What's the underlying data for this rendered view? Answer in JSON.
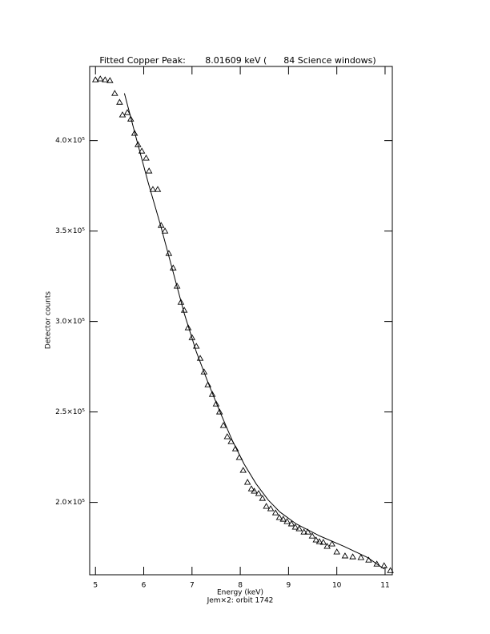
{
  "chart_data": {
    "type": "scatter",
    "title": "Fitted Copper Peak:       8.01609 keV (      84 Science windows)",
    "x_label": "Energy (keV)",
    "subtitle": "Jem×2: orbit 1742",
    "y_label": "Detector counts",
    "xlim": [
      4.88,
      11.15
    ],
    "xticks": [
      5,
      6,
      7,
      8,
      9,
      10,
      11
    ],
    "ylim": [
      160000,
      441000
    ],
    "yticks": [
      {
        "value": 200000,
        "label": "2.0×10⁵"
      },
      {
        "value": 250000,
        "label": "2.5×10⁵"
      },
      {
        "value": 300000,
        "label": "3.0×10⁵"
      },
      {
        "value": 350000,
        "label": "3.5×10⁵"
      },
      {
        "value": 400000,
        "label": "4.0×10⁵"
      }
    ],
    "color": "#000000",
    "series": [
      {
        "marker": "triangle",
        "x": [
          5.0,
          5.1,
          5.2,
          5.3,
          5.4,
          5.5,
          5.56,
          5.66,
          5.73,
          5.81,
          5.88,
          5.96,
          6.05,
          6.11,
          6.19,
          6.29,
          6.36,
          6.44,
          6.52,
          6.61,
          6.69,
          6.77,
          6.84,
          6.92,
          7.0,
          7.09,
          7.17,
          7.25,
          7.33,
          7.42,
          7.5,
          7.57,
          7.65,
          7.73,
          7.81,
          7.9,
          7.98,
          8.06,
          8.15,
          8.23,
          8.29,
          8.38,
          8.46,
          8.54,
          8.63,
          8.73,
          8.81,
          8.89,
          8.97,
          9.06,
          9.14,
          9.22,
          9.32,
          9.4,
          9.49,
          9.57,
          9.64,
          9.72,
          9.8,
          9.9,
          10.0,
          10.17,
          10.33,
          10.5,
          10.66,
          10.83,
          10.98,
          11.11
        ],
        "values": [
          433600,
          434100,
          433600,
          433200,
          426100,
          421200,
          414200,
          415500,
          411900,
          404000,
          397800,
          394200,
          390300,
          383200,
          373000,
          373000,
          353100,
          350000,
          337600,
          329600,
          319500,
          310600,
          306200,
          296500,
          291100,
          286300,
          279600,
          272100,
          265000,
          259700,
          254400,
          250000,
          242500,
          236300,
          233600,
          229600,
          224800,
          217700,
          211100,
          207500,
          206200,
          204900,
          202200,
          197800,
          196500,
          194200,
          191600,
          190700,
          189400,
          188100,
          186300,
          185400,
          183600,
          183600,
          181400,
          179200,
          178300,
          177900,
          175700,
          177000,
          172600,
          170400,
          169900,
          169500,
          168100,
          165900,
          165000,
          162300
        ]
      },
      {
        "marker": "line",
        "x": [
          5.6,
          5.84,
          6.09,
          6.34,
          6.59,
          6.84,
          7.09,
          7.33,
          7.58,
          7.83,
          8.08,
          8.33,
          8.58,
          8.82,
          9.16,
          9.65,
          10.15,
          10.64,
          10.98
        ],
        "values": [
          426100,
          401800,
          377000,
          354000,
          329200,
          304400,
          283200,
          266400,
          250000,
          234500,
          221200,
          210200,
          201300,
          194700,
          188100,
          181400,
          175700,
          169500,
          163200
        ]
      }
    ]
  }
}
